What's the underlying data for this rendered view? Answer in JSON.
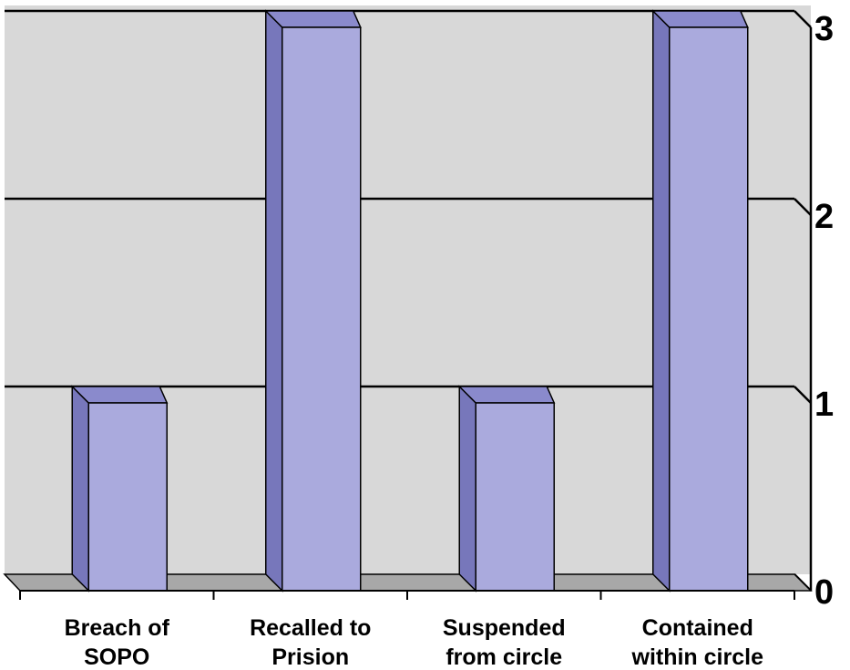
{
  "chart_data": {
    "type": "bar",
    "categories": [
      [
        "Breach of",
        "SOPO"
      ],
      [
        "Recalled to",
        "Prision"
      ],
      [
        "Suspended",
        "from circle"
      ],
      [
        "Contained",
        "within circle"
      ]
    ],
    "values": [
      1,
      3,
      1,
      3
    ],
    "yticks": [
      "0",
      "1",
      "2",
      "3"
    ],
    "ylim": [
      0,
      3
    ],
    "grid": true,
    "legend": "none",
    "colors": {
      "bar_front": "#aaaadd",
      "bar_side": "#7777bb",
      "bar_top": "#8a8acc",
      "wall": "#d8d8d8",
      "floor": "#a8a8a8",
      "line": "#000000"
    }
  }
}
